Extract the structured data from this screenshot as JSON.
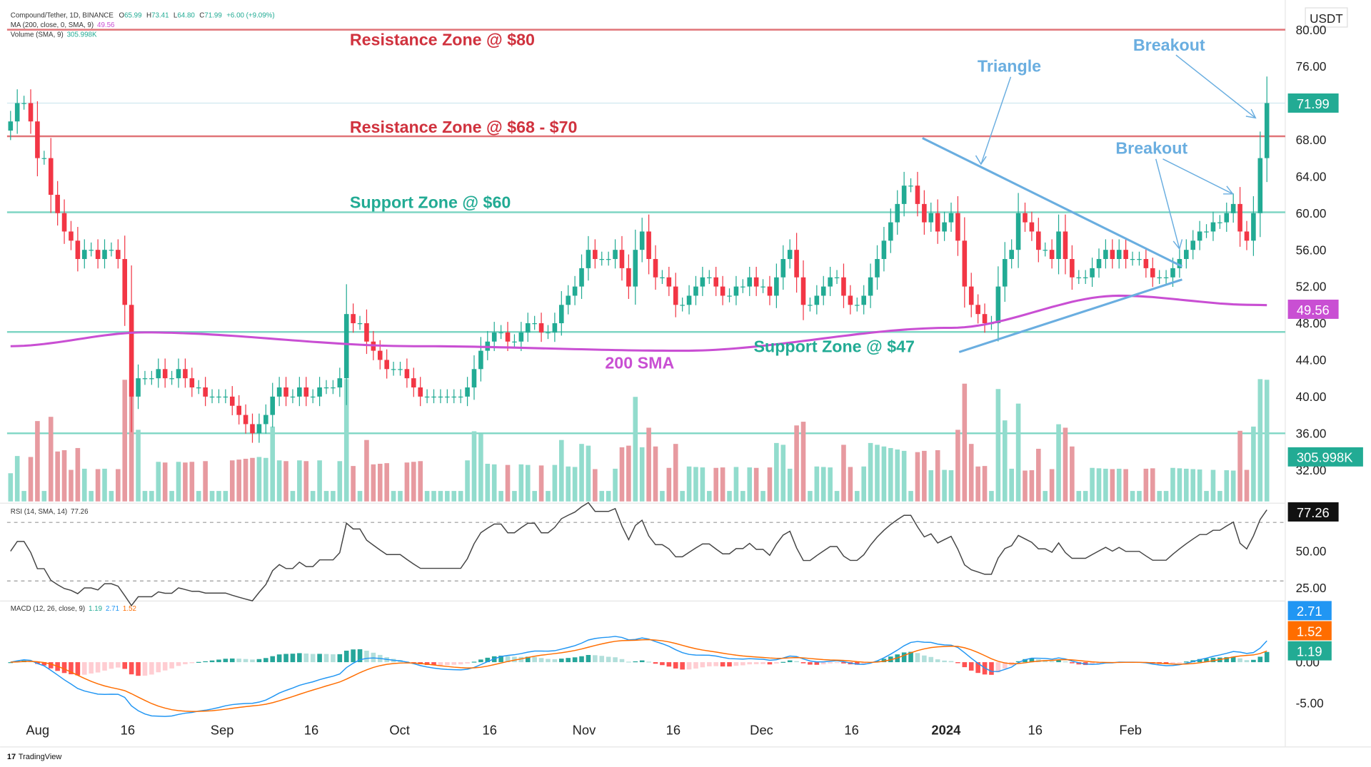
{
  "header": {
    "symbol": "Compound/Tether, 1D, BINANCE",
    "open_label": "O",
    "open": "65.99",
    "high_label": "H",
    "high": "73.41",
    "low_label": "L",
    "low": "64.80",
    "close_label": "C",
    "close": "71.99",
    "change": "+6.00 (+9.09%)",
    "ma_label": "MA (200, close, 0, SMA, 9)",
    "ma_value": "49.56",
    "volume_label": "Volume (SMA, 9)",
    "volume_value": "305.998K",
    "currency": "USDT"
  },
  "indicators": {
    "rsi_label": "RSI (14, SMA, 14)",
    "rsi_value": "77.26",
    "macd_label": "MACD (12, 26, close, 9)",
    "macd_value": "1.19",
    "macd_line": "2.71",
    "macd_signal": "1.52"
  },
  "tags": {
    "price": "71.99",
    "sma": "49.56",
    "volume": "305.998K",
    "rsi": "77.26",
    "macd_line": "2.71",
    "macd_signal": "1.52",
    "macd_hist": "1.19"
  },
  "annotations": {
    "res80": "Resistance Zone @ $80",
    "res68": "Resistance Zone @ $68 - $70",
    "sup60": "Support Zone @ $60",
    "sup47": "Support Zone @ $47",
    "sma": "200 SMA",
    "triangle": "Triangle",
    "breakout1": "Breakout",
    "breakout2": "Breakout"
  },
  "footer": {
    "brand": "TradingView"
  },
  "colors": {
    "up": "#22ab94",
    "down": "#f23645",
    "sma": "#c94fd3",
    "resistance": "#e07478",
    "support": "#7fd6c4",
    "annotation_blue": "#6aaee0",
    "macd": "#2196f3",
    "signal": "#ff6d00"
  },
  "chart_data": {
    "type": "candlestick",
    "y_ticks": [
      "80.00",
      "76.00",
      "68.00",
      "64.00",
      "60.00",
      "56.00",
      "52.00",
      "48.00",
      "44.00",
      "40.00",
      "36.00",
      "32.00"
    ],
    "ylim": [
      30,
      82
    ],
    "x_ticks": [
      "Aug",
      "16",
      "Sep",
      "16",
      "Oct",
      "16",
      "Nov",
      "16",
      "Dec",
      "16",
      "2024",
      "16",
      "Feb"
    ],
    "rsi_ticks": [
      "50.00",
      "25.00"
    ],
    "macd_ticks": [
      "0.00",
      "-5.00"
    ],
    "horizontal_levels": [
      80,
      68,
      60,
      47,
      36
    ],
    "closes": [
      70,
      72,
      72,
      70,
      66,
      66,
      62,
      60,
      58,
      57,
      55,
      56,
      56,
      55,
      56,
      56,
      55,
      50,
      40,
      42,
      42,
      42,
      43,
      42,
      42,
      43,
      42,
      41,
      41,
      40,
      40,
      40,
      40,
      39,
      38,
      37,
      36,
      37,
      38,
      40,
      41,
      40,
      40,
      41,
      40,
      40,
      41,
      41,
      41,
      42,
      49,
      48,
      48,
      46,
      45,
      44,
      43,
      43,
      43,
      42,
      41,
      40,
      40,
      40,
      40,
      40,
      40,
      40,
      41,
      43,
      45,
      46,
      47,
      47,
      46,
      46,
      47,
      48,
      48,
      47,
      47,
      48,
      50,
      51,
      52,
      54,
      56,
      55,
      55,
      55,
      56,
      54,
      52,
      56,
      58,
      55,
      53,
      53,
      52,
      50,
      50,
      51,
      52,
      53,
      53,
      52,
      51,
      51,
      52,
      52,
      53,
      52,
      52,
      51,
      53,
      55,
      56,
      53,
      50,
      50,
      51,
      52,
      53,
      53,
      51,
      50,
      50,
      51,
      53,
      55,
      57,
      59,
      61,
      63,
      63,
      61,
      59,
      60,
      58,
      59,
      60,
      57,
      52,
      50,
      49,
      48,
      48,
      52,
      55,
      56,
      60,
      59,
      58,
      56,
      56,
      55,
      58,
      55,
      53,
      53,
      53,
      54,
      55,
      56,
      55,
      56,
      55,
      55,
      55,
      54,
      53,
      53,
      53,
      54,
      55,
      56,
      57,
      58,
      58,
      59,
      59,
      60,
      61,
      58,
      57,
      60,
      66,
      72
    ],
    "sma200_anchors": [
      [
        0,
        45.5
      ],
      [
        20,
        47
      ],
      [
        60,
        45.5
      ],
      [
        100,
        45
      ],
      [
        140,
        47.5
      ],
      [
        165,
        51
      ],
      [
        185,
        50
      ],
      [
        199,
        49.56
      ]
    ],
    "last_values": {
      "close": 71.99,
      "sma200": 49.56,
      "rsi": 77.26,
      "macd": 2.71,
      "signal": 1.52,
      "histogram": 1.19
    }
  }
}
